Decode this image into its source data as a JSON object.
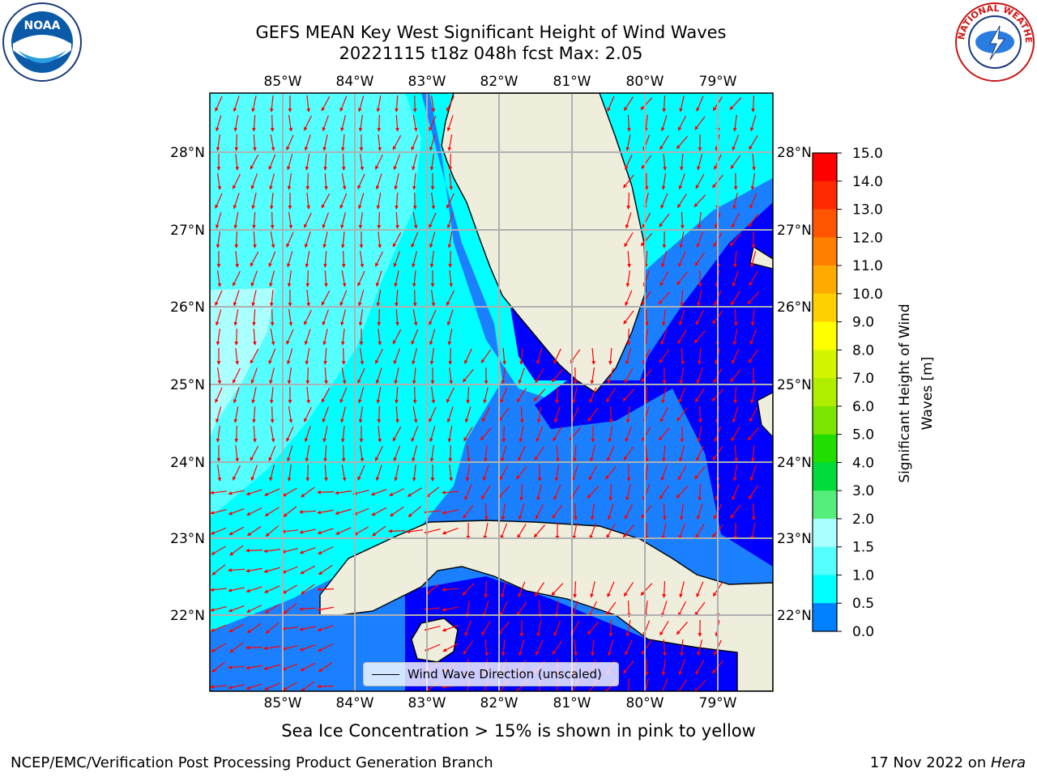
{
  "title_line1": "GEFS MEAN Key West Significant Height of Wind Waves",
  "title_line2": "20221115 t18z 048h fcst   Max: 2.05",
  "lon_ticks": [
    "85°W",
    "84°W",
    "83°W",
    "82°W",
    "81°W",
    "80°W",
    "79°W"
  ],
  "lat_ticks": [
    "28°N",
    "27°N",
    "26°N",
    "25°N",
    "24°N",
    "23°N",
    "22°N"
  ],
  "colorbar": {
    "label_line1": "Significant Height of Wind",
    "label_line2": "Waves [m]",
    "ticks": [
      "15.0",
      "14.0",
      "13.0",
      "12.0",
      "11.0",
      "10.0",
      "9.0",
      "8.0",
      "7.0",
      "6.0",
      "5.0",
      "4.0",
      "3.0",
      "2.0",
      "1.5",
      "1.0",
      "0.5",
      "0.0"
    ],
    "colors": [
      "#ff0000",
      "#ff2a00",
      "#ff5500",
      "#ff8000",
      "#ffaa00",
      "#ffd000",
      "#ffff00",
      "#d4f500",
      "#b0ee00",
      "#7ce600",
      "#22dd00",
      "#00dc3c",
      "#55ee7a",
      "#aaffff",
      "#55ffff",
      "#00ffff",
      "#0080ff",
      "#0000ff"
    ]
  },
  "legend_label": "Wind Wave Direction (unscaled)",
  "ice_note": "Sea Ice Concentration > 15% is shown in pink to yellow",
  "credit": "NCEP/EMC/Verification Post Processing Product Generation Branch",
  "date": "17 Nov 2022 on ",
  "host": "Hera",
  "colors": {
    "land": "#efeedd",
    "wave_0_05": "#0000ff",
    "wave_05_10": "#1a80ff",
    "wave_10_15": "#00ffff",
    "wave_15_20": "#55ffff",
    "wave_20_30": "#aaffff",
    "arrow": "#ff0000",
    "grid": "#b0b0b0"
  }
}
